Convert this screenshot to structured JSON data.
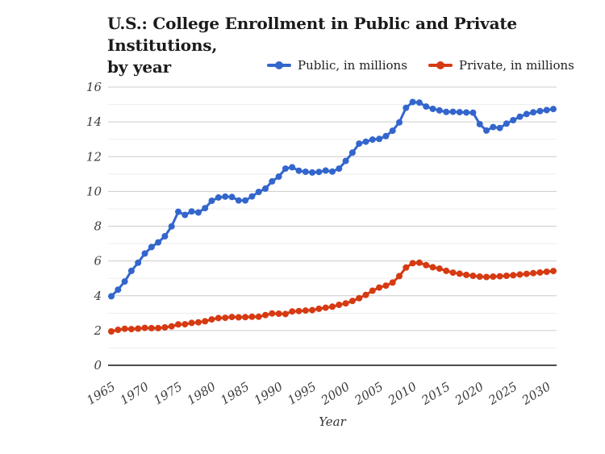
{
  "header": {
    "title_line1": "U.S.: College Enrollment in Public and Private Institutions,",
    "title_line2": "by year"
  },
  "legend": {
    "items": [
      {
        "label": "Public, in millions",
        "color": "#3366cc"
      },
      {
        "label": "Private, in millions",
        "color": "#d63a12"
      }
    ]
  },
  "axes": {
    "x_title": "Year",
    "y_tick_labels": [
      "0",
      "2",
      "4",
      "6",
      "8",
      "10",
      "12",
      "14",
      "16"
    ],
    "x_tick_labels": [
      "1965",
      "1970",
      "1975",
      "1980",
      "1985",
      "1990",
      "1995",
      "2000",
      "2005",
      "2010",
      "2015",
      "2020",
      "2025",
      "2030"
    ]
  },
  "colors": {
    "major_gridline": "#cccccc",
    "minor_gridline": "#ededed",
    "baseline": "#333333",
    "tick_label": "#3d3d3d",
    "title_text": "#1b1b1b"
  },
  "chart_data": {
    "type": "line",
    "title": "U.S.: College Enrollment in Public and Private Institutions, by year",
    "xlabel": "Year",
    "ylabel": "",
    "ylim": [
      0,
      16
    ],
    "y_ticks": [
      0,
      2,
      4,
      6,
      8,
      10,
      12,
      14,
      16
    ],
    "x_ticks": [
      1965,
      1970,
      1975,
      1980,
      1985,
      1990,
      1995,
      2000,
      2005,
      2010,
      2015,
      2020,
      2025,
      2030
    ],
    "grid": "horizontal, minor lines at odd values",
    "legend_position": "top",
    "marker": "circle",
    "x": [
      1965,
      1966,
      1967,
      1968,
      1969,
      1970,
      1971,
      1972,
      1973,
      1974,
      1975,
      1976,
      1977,
      1978,
      1979,
      1980,
      1981,
      1982,
      1983,
      1984,
      1985,
      1986,
      1987,
      1988,
      1989,
      1990,
      1991,
      1992,
      1993,
      1994,
      1995,
      1996,
      1997,
      1998,
      1999,
      2000,
      2001,
      2002,
      2003,
      2004,
      2005,
      2006,
      2007,
      2008,
      2009,
      2010,
      2011,
      2012,
      2013,
      2014,
      2015,
      2016,
      2017,
      2018,
      2019,
      2020,
      2021,
      2022,
      2023,
      2024,
      2025,
      2026,
      2027,
      2028,
      2029,
      2030,
      2031
    ],
    "series": [
      {
        "name": "Public, in millions",
        "color": "#3366cc",
        "values": [
          3.97,
          4.35,
          4.82,
          5.43,
          5.9,
          6.43,
          6.8,
          7.07,
          7.42,
          7.99,
          8.83,
          8.65,
          8.85,
          8.79,
          9.04,
          9.46,
          9.65,
          9.7,
          9.68,
          9.48,
          9.48,
          9.71,
          9.97,
          10.16,
          10.58,
          10.85,
          11.31,
          11.39,
          11.19,
          11.13,
          11.09,
          11.12,
          11.2,
          11.14,
          11.31,
          11.75,
          12.23,
          12.75,
          12.86,
          12.98,
          13.02,
          13.18,
          13.49,
          13.97,
          14.81,
          15.14,
          15.11,
          14.88,
          14.75,
          14.66,
          14.57,
          14.58,
          14.56,
          14.54,
          14.53,
          13.87,
          13.5,
          13.7,
          13.65,
          13.9,
          14.1,
          14.3,
          14.45,
          14.55,
          14.62,
          14.68,
          14.74
        ]
      },
      {
        "name": "Private, in millions",
        "color": "#d63a12",
        "values": [
          1.95,
          2.04,
          2.1,
          2.08,
          2.11,
          2.15,
          2.14,
          2.14,
          2.18,
          2.24,
          2.35,
          2.36,
          2.44,
          2.47,
          2.53,
          2.64,
          2.72,
          2.73,
          2.78,
          2.76,
          2.77,
          2.79,
          2.79,
          2.89,
          2.98,
          2.97,
          2.95,
          3.1,
          3.12,
          3.15,
          3.17,
          3.25,
          3.31,
          3.37,
          3.48,
          3.56,
          3.7,
          3.86,
          4.05,
          4.29,
          4.47,
          4.58,
          4.76,
          5.13,
          5.62,
          5.87,
          5.9,
          5.76,
          5.64,
          5.56,
          5.43,
          5.33,
          5.27,
          5.2,
          5.15,
          5.1,
          5.08,
          5.1,
          5.12,
          5.15,
          5.18,
          5.22,
          5.26,
          5.3,
          5.34,
          5.38,
          5.42
        ]
      }
    ]
  }
}
